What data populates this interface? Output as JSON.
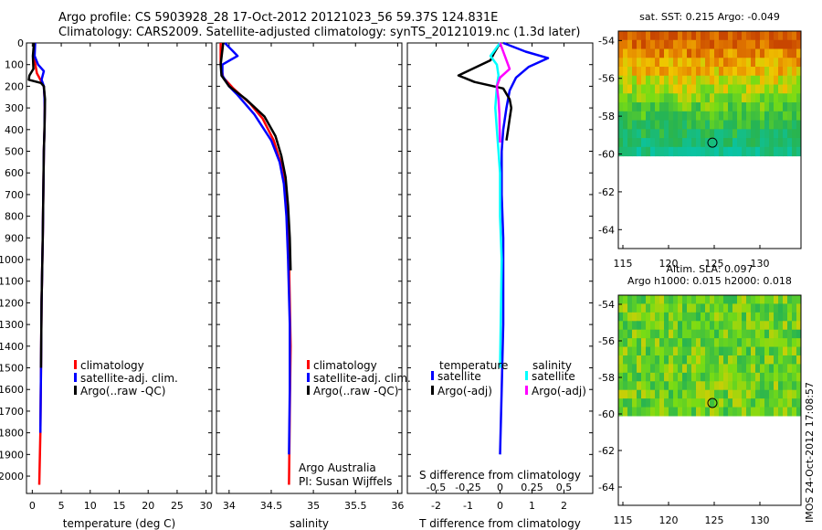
{
  "title": {
    "line1": "Argo profile: CS 5903928_28 17-Oct-2012 20121023_56 59.37S 124.831E",
    "line2": "Climatology: CARS2009. Satellite-adjusted climatology: synTS_20121019.nc (1.3d later)"
  },
  "stamp": "IMOS 24-Oct-2012 17:08:57",
  "colors": {
    "climatology": "#ff0000",
    "satellite": "#0000ff",
    "argo": "#000000",
    "satellite_salinity": "#00ffff",
    "argo_salinity": "#ff00ff"
  },
  "chart_data": [
    {
      "type": "line",
      "id": "temperature",
      "xlabel": "temperature (deg C)",
      "ylabel": "",
      "xlim": [
        -1,
        31
      ],
      "ylim": [
        2080,
        0
      ],
      "xticks": [
        0,
        5,
        10,
        15,
        20,
        25,
        30
      ],
      "yticks": [
        0,
        100,
        200,
        300,
        400,
        500,
        600,
        700,
        800,
        900,
        1000,
        1100,
        1200,
        1300,
        1400,
        1500,
        1600,
        1700,
        1800,
        1900,
        2000
      ],
      "legend": [
        "climatology",
        "satellite-adj. clim.",
        "Argo(..raw -QC)"
      ],
      "legend_position": "lower-center",
      "series": [
        {
          "name": "climatology",
          "color": "#ff0000",
          "x": [
            0.3,
            0.4,
            0.8,
            1.2,
            1.6,
            2.0,
            2.1,
            2.15,
            2.1,
            2.0,
            1.9,
            1.8,
            1.6,
            1.5,
            1.4,
            1.2
          ],
          "y": [
            0,
            80,
            140,
            160,
            180,
            200,
            250,
            300,
            400,
            500,
            700,
            900,
            1200,
            1500,
            1800,
            2040
          ]
        },
        {
          "name": "satellite-adj. clim.",
          "color": "#0000ff",
          "x": [
            0.5,
            0.4,
            1.0,
            2.0,
            1.6,
            2.0,
            2.1,
            2.15,
            2.1,
            2.0,
            1.9,
            1.8,
            1.6,
            1.5,
            1.4
          ],
          "y": [
            0,
            60,
            100,
            130,
            170,
            200,
            250,
            300,
            400,
            500,
            700,
            900,
            1200,
            1500,
            1800
          ]
        },
        {
          "name": "Argo(..raw -QC)",
          "color": "#000000",
          "x": [
            0.3,
            0.1,
            0.2,
            -0.5,
            -0.6,
            1.5,
            2.0,
            2.2,
            2.1,
            2.0,
            1.9,
            1.8,
            1.6,
            1.5
          ],
          "y": [
            0,
            60,
            120,
            150,
            170,
            185,
            200,
            260,
            400,
            500,
            700,
            900,
            1200,
            1500
          ]
        }
      ]
    },
    {
      "type": "line",
      "id": "salinity",
      "xlabel": "salinity",
      "ylabel": "",
      "xlim": [
        33.85,
        36.05
      ],
      "ylim": [
        2080,
        0
      ],
      "xticks": [
        34,
        34.5,
        35,
        35.5,
        36
      ],
      "legend": [
        "climatology",
        "satellite-adj. clim.",
        "Argo(..raw -QC)"
      ],
      "legend_position": "lower-center",
      "annotation": [
        "Argo Australia",
        "PI: Susan Wijffels"
      ],
      "series": [
        {
          "name": "climatology",
          "color": "#ff0000",
          "x": [
            33.9,
            33.9,
            33.93,
            34.05,
            34.25,
            34.4,
            34.53,
            34.61,
            34.66,
            34.69,
            34.71,
            34.72,
            34.73,
            34.72,
            34.71
          ],
          "y": [
            0,
            100,
            160,
            210,
            280,
            350,
            450,
            550,
            650,
            800,
            1000,
            1200,
            1400,
            1700,
            2040
          ]
        },
        {
          "name": "satellite-adj. clim.",
          "color": "#0000ff",
          "x": [
            33.95,
            34.1,
            33.92,
            33.92,
            34.0,
            34.1,
            34.3,
            34.5,
            34.6,
            34.65,
            34.68,
            34.7,
            34.72,
            34.72,
            34.71
          ],
          "y": [
            0,
            60,
            100,
            150,
            200,
            240,
            330,
            450,
            550,
            650,
            800,
            1000,
            1300,
            1600,
            1900
          ]
        },
        {
          "name": "Argo(..raw -QC)",
          "color": "#000000",
          "x": [
            33.93,
            33.9,
            33.91,
            34.0,
            34.2,
            34.42,
            34.55,
            34.62,
            34.67,
            34.7,
            34.72,
            34.73
          ],
          "y": [
            0,
            100,
            150,
            200,
            260,
            340,
            430,
            520,
            620,
            750,
            900,
            1050
          ]
        }
      ]
    },
    {
      "type": "line",
      "id": "difference",
      "xlabel": "T difference from climatology",
      "xlabel2": "S difference from climatology",
      "ylabel": "",
      "xlim": [
        -2.9,
        2.9
      ],
      "ylim": [
        2080,
        0
      ],
      "xticks": [
        -2,
        -1,
        0,
        1,
        2
      ],
      "xticks2": [
        -0.5,
        -0.25,
        0,
        0.25,
        0.5
      ],
      "legend_headers": [
        "temperature",
        "salinity"
      ],
      "legend": [
        {
          "group": "temperature",
          "label": "satellite",
          "color": "#0000ff"
        },
        {
          "group": "temperature",
          "label": "Argo(-adj)",
          "color": "#000000"
        },
        {
          "group": "salinity",
          "label": "satellite",
          "color": "#00ffff"
        },
        {
          "group": "salinity",
          "label": "Argo(-adj)",
          "color": "#ff00ff"
        }
      ],
      "legend_position": "lower-center",
      "series": [
        {
          "name": "T satellite",
          "color": "#0000ff",
          "x": [
            0.1,
            0.8,
            1.5,
            0.9,
            0.5,
            0.3,
            0.2,
            0.1,
            0.05,
            0.05,
            0.1,
            0.1,
            0.1,
            0.05,
            0.0
          ],
          "y": [
            0,
            40,
            70,
            110,
            160,
            220,
            300,
            400,
            500,
            700,
            900,
            1100,
            1300,
            1600,
            1900
          ]
        },
        {
          "name": "T Argo(-adj)",
          "color": "#000000",
          "x": [
            0.0,
            -0.2,
            -0.3,
            -1.3,
            -0.8,
            0.1,
            0.3,
            0.35,
            0.3,
            0.25,
            0.2
          ],
          "y": [
            0,
            50,
            80,
            150,
            180,
            210,
            260,
            300,
            350,
            400,
            450
          ]
        },
        {
          "name": "S satellite",
          "color": "#00ffff",
          "x": [
            0.0,
            -0.3,
            -0.1,
            -0.05,
            -0.1,
            -0.15,
            -0.1,
            -0.05,
            0.0,
            0.0,
            0.05,
            0.0
          ],
          "y": [
            0,
            60,
            100,
            150,
            200,
            300,
            400,
            500,
            600,
            800,
            1000,
            1500
          ]
        },
        {
          "name": "S Argo(-adj)",
          "color": "#ff00ff",
          "x": [
            0.0,
            0.3,
            0.0,
            -0.1,
            -0.05,
            -0.02,
            -0.01,
            0.0
          ],
          "y": [
            0,
            120,
            160,
            200,
            260,
            330,
            400,
            460
          ]
        }
      ]
    },
    {
      "type": "heatmap",
      "id": "sst_map",
      "title": "sat. SST: 0.215 Argo: -0.049",
      "xlim": [
        114.5,
        134.5
      ],
      "ylim": [
        -65,
        -53.5
      ],
      "xticks": [
        115,
        120,
        125,
        130
      ],
      "yticks": [
        -54,
        -56,
        -58,
        -60,
        -62,
        -64
      ],
      "data_lat_limit": -60.1,
      "marker": {
        "lon": 124.8,
        "lat": -59.4
      }
    },
    {
      "type": "heatmap",
      "id": "sla_map",
      "title": [
        "Altim. SLA: 0.097",
        "Argo h1000: 0.015 h2000: 0.018"
      ],
      "xlim": [
        114.5,
        134.5
      ],
      "ylim": [
        -65,
        -53.5
      ],
      "xticks": [
        115,
        120,
        125,
        130
      ],
      "yticks": [
        -54,
        -56,
        -58,
        -60,
        -62,
        -64
      ],
      "data_lat_limit": -60.1,
      "marker": {
        "lon": 124.8,
        "lat": -59.4
      }
    }
  ]
}
